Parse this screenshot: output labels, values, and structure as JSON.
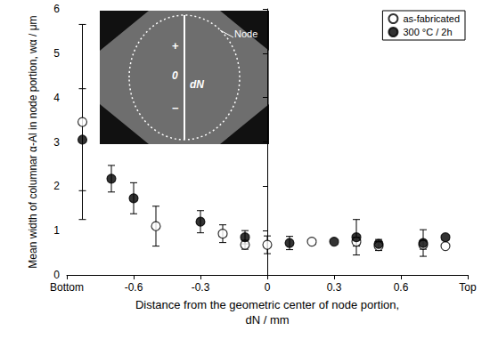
{
  "chart_data": {
    "type": "scatter",
    "x_label": "Distance from the geometric center of node portion,\ndN / mm",
    "y_label": "Mean width of columnar α-Al in node portion, wα / μm",
    "xlim": [
      -0.9,
      0.9
    ],
    "xticks": [
      {
        "value": -0.9,
        "label": "Bottom"
      },
      -0.6,
      -0.3,
      0,
      0.3,
      0.6,
      {
        "value": 0.9,
        "label": "Top"
      }
    ],
    "ylim": [
      0,
      6
    ],
    "yticks": [
      0,
      1,
      2,
      3,
      4,
      5,
      6
    ],
    "grid": false,
    "legend": "upper right",
    "series": [
      {
        "name": "as-fabricated",
        "color": "#000000",
        "marker": "circle_open",
        "x": [
          -0.83,
          -0.5,
          -0.2,
          -0.1,
          0,
          0.2,
          0.4,
          0.5,
          0.7,
          0.8
        ],
        "values": [
          3.45,
          1.1,
          0.93,
          0.68,
          0.68,
          0.75,
          0.75,
          0.65,
          0.68,
          0.65
        ],
        "errors": [
          2.2,
          0.45,
          0.2,
          0.1,
          0.2,
          null,
          0.1,
          0.1,
          0.1,
          null
        ]
      },
      {
        "name": "300 °C / 2h",
        "color": "#000000",
        "marker": "circle",
        "x": [
          -0.83,
          -0.7,
          -0.6,
          -0.3,
          -0.1,
          0.1,
          0.3,
          0.4,
          0.5,
          0.7,
          0.8
        ],
        "values": [
          3.05,
          2.17,
          1.73,
          1.2,
          0.85,
          0.72,
          0.75,
          0.85,
          0.7,
          0.72,
          0.85
        ],
        "errors": [
          1.15,
          0.3,
          0.35,
          0.25,
          0.15,
          0.15,
          null,
          0.4,
          0.1,
          0.3,
          null
        ]
      }
    ],
    "inset": {
      "labels": {
        "node": "Node",
        "plus": "+",
        "zero": "0",
        "minus": "−",
        "dN": "dN"
      }
    }
  }
}
